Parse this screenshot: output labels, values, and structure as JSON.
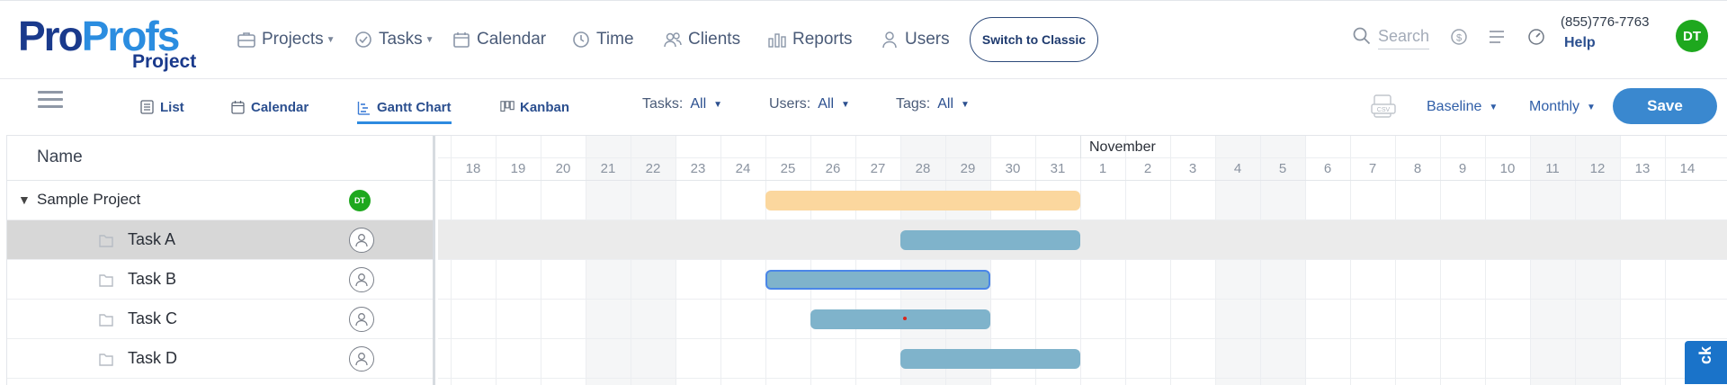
{
  "app": {
    "logo_pro": "Pro",
    "logo_profs": "Profs",
    "logo_sub": "Project"
  },
  "nav": {
    "projects": "Projects",
    "tasks": "Tasks",
    "calendar": "Calendar",
    "time": "Time",
    "clients": "Clients",
    "reports": "Reports",
    "users": "Users"
  },
  "header": {
    "switch_label": "Switch to Classic",
    "search_placeholder": "Search",
    "phone": "(855)776-7763",
    "help": "Help",
    "user_initials": "DT"
  },
  "views": {
    "list": "List",
    "calendar": "Calendar",
    "gantt": "Gantt Chart",
    "kanban": "Kanban"
  },
  "filters": {
    "tasks_label": "Tasks:",
    "tasks_value": "All",
    "users_label": "Users:",
    "users_value": "All",
    "tags_label": "Tags:",
    "tags_value": "All"
  },
  "toolbar": {
    "baseline": "Baseline",
    "scale": "Monthly",
    "save": "Save"
  },
  "gantt": {
    "name_header": "Name",
    "month_label": "November",
    "days": [
      "18",
      "19",
      "20",
      "21",
      "22",
      "23",
      "24",
      "25",
      "26",
      "27",
      "28",
      "29",
      "30",
      "31",
      "1",
      "2",
      "3",
      "4",
      "5",
      "6",
      "7",
      "8",
      "9",
      "10",
      "11",
      "12",
      "13",
      "14"
    ],
    "rows": [
      {
        "name": "Sample Project",
        "type": "project",
        "assignee": "DT",
        "start_index": 7,
        "end_index": 14
      },
      {
        "name": "Task A",
        "type": "task",
        "start_index": 10,
        "end_index": 14,
        "selected": true
      },
      {
        "name": "Task B",
        "type": "task",
        "start_index": 7,
        "end_index": 12,
        "highlighted": true
      },
      {
        "name": "Task C",
        "type": "task",
        "start_index": 8,
        "end_index": 12
      },
      {
        "name": "Task D",
        "type": "task",
        "start_index": 10,
        "end_index": 14
      }
    ]
  },
  "feedback": {
    "label": "ck"
  }
}
